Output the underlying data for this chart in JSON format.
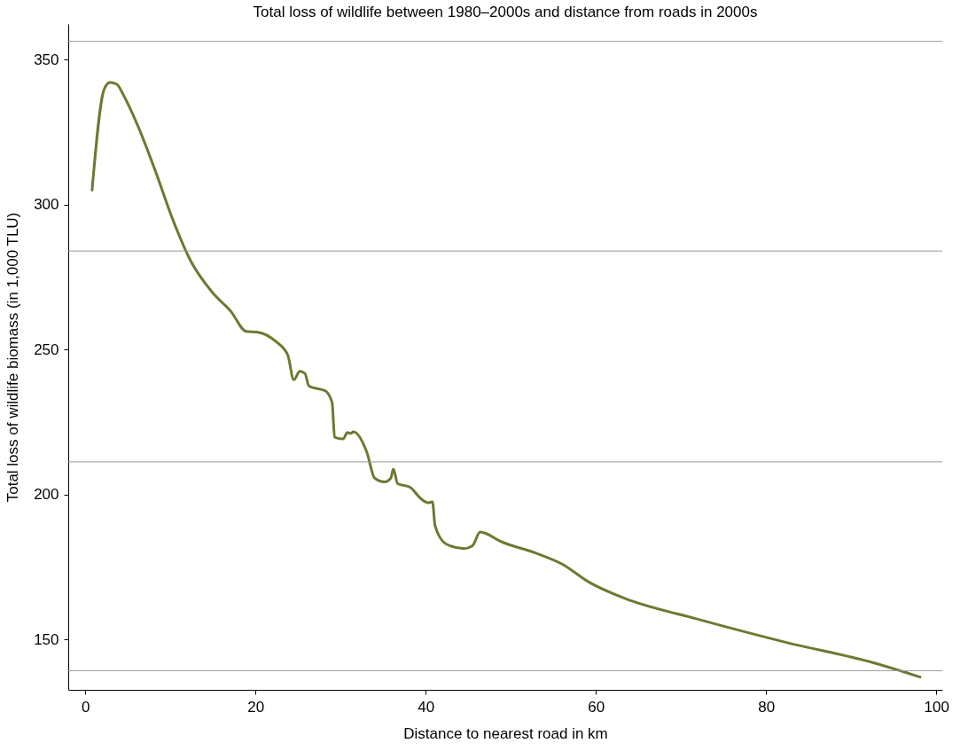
{
  "chart_data": {
    "type": "line",
    "title": "Total loss of wildlife between 1980–2000s and distance from roads in 2000s",
    "xlabel": "Distance to nearest road in km",
    "ylabel": "Total loss of wildlife biomass (in 1,000 TLU)",
    "xlim": [
      -2,
      100.7
    ],
    "ylim": [
      132.7,
      362.3
    ],
    "xticks": [
      0,
      20,
      40,
      60,
      80,
      100
    ],
    "yticks": [
      150,
      200,
      250,
      300,
      350
    ],
    "grid": false,
    "marker": "none",
    "line_style": "solid",
    "ref_lines": [
      {
        "axis": "y",
        "value": 139.3,
        "color": "#999999"
      },
      {
        "axis": "y",
        "value": 211.3,
        "color": "#999999"
      },
      {
        "axis": "y",
        "value": 284.0,
        "color": "#999999"
      },
      {
        "axis": "y",
        "value": 356.3,
        "color": "#999999"
      }
    ],
    "series": [
      {
        "color": "#6b7a30",
        "x": [
          0.8,
          2.2,
          2.9,
          3.7,
          4.5,
          6.1,
          8.2,
          10.3,
          12.4,
          15.0,
          17.1,
          18.9,
          20.3,
          22.4,
          23.8,
          24.5,
          25.2,
          25.8,
          26.3,
          28.2,
          29.0,
          29.3,
          30.3,
          30.8,
          31.2,
          31.5,
          33.1,
          34.0,
          35.2,
          35.9,
          36.2,
          36.7,
          38.2,
          39.4,
          40.3,
          40.8,
          41.1,
          42.4,
          44.5,
          45.5,
          46.4,
          46.9,
          48.7,
          52.9,
          56.0,
          59.2,
          63.4,
          71.8,
          82.3,
          92.9,
          98.1
        ],
        "values": [
          305.0,
          339.6,
          342.1,
          341.5,
          337.7,
          327.7,
          311.9,
          294.7,
          280.5,
          269.5,
          263.2,
          256.3,
          256.0,
          252.8,
          248.1,
          239.6,
          242.5,
          241.8,
          237.4,
          235.8,
          231.8,
          219.8,
          219.2,
          221.4,
          221.1,
          221.7,
          214.5,
          205.7,
          204.4,
          205.7,
          208.8,
          203.8,
          202.5,
          198.7,
          197.2,
          197.5,
          189.3,
          183.0,
          181.4,
          182.4,
          187.1,
          186.8,
          184.0,
          179.9,
          176.1,
          169.8,
          164.2,
          157.2,
          149.1,
          141.8,
          137.1
        ]
      }
    ]
  }
}
